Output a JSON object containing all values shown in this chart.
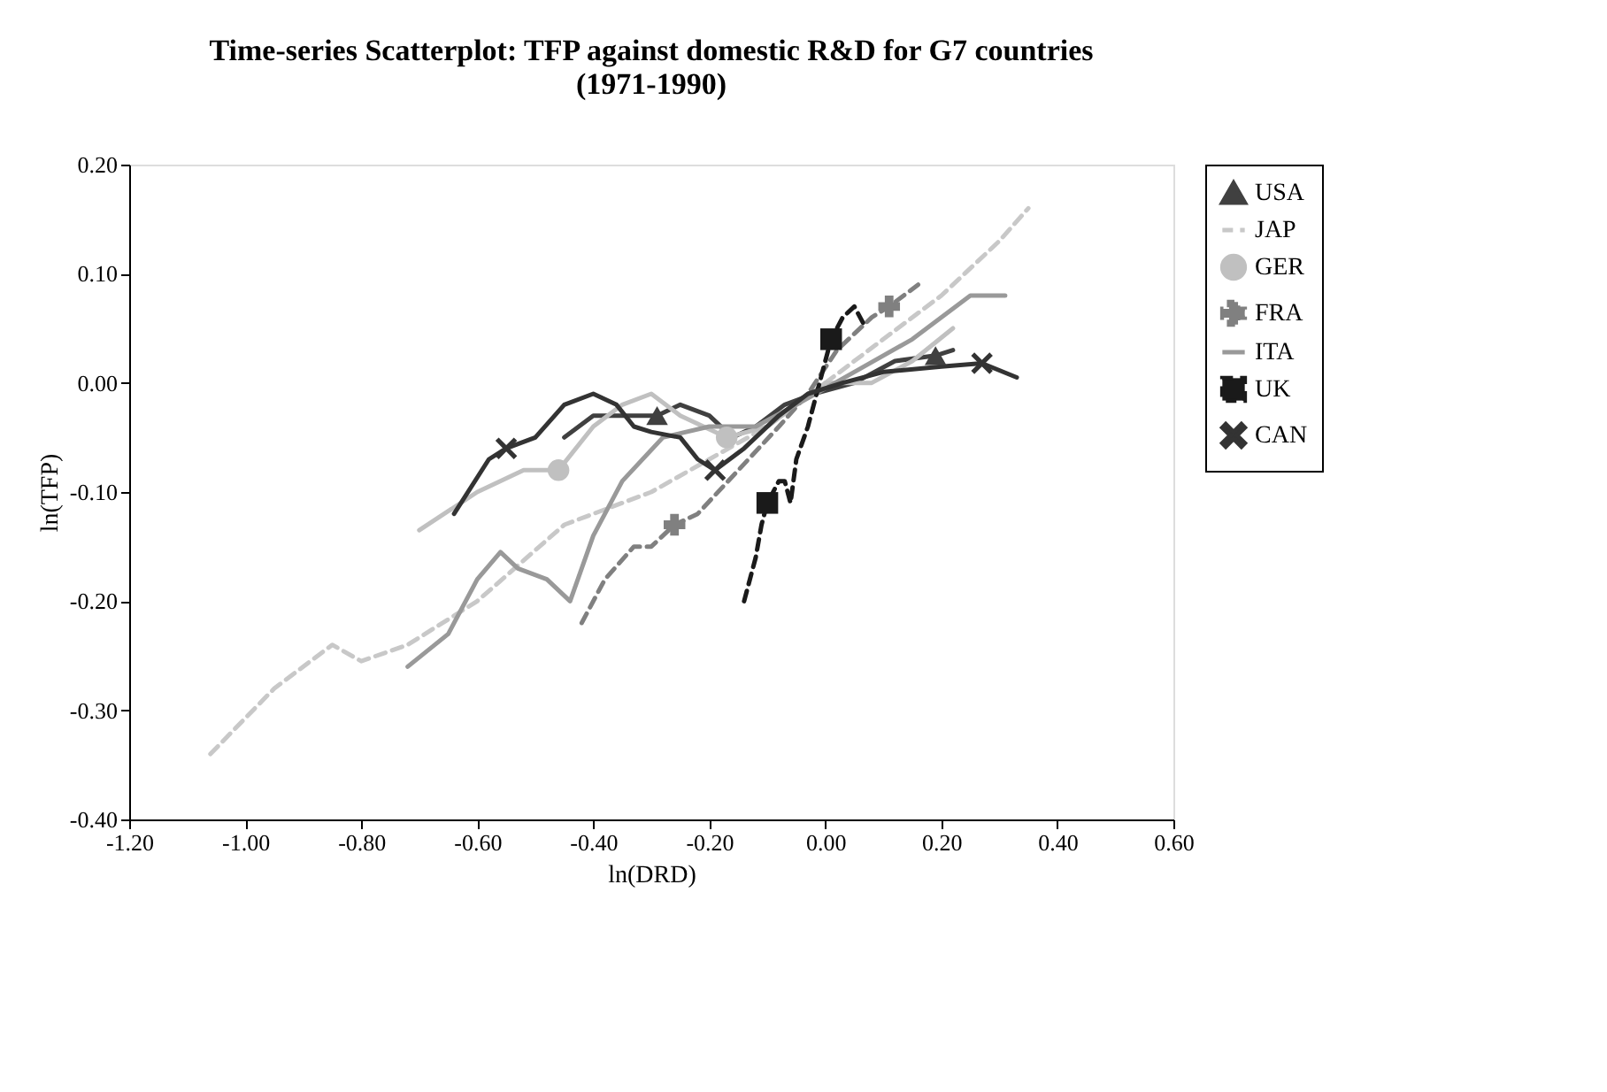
{
  "chart_data": {
    "type": "line",
    "title": "Time-series Scatterplot: TFP against domestic R&D for G7 countries\n(1971-1990)",
    "xlabel": "ln(DRD)",
    "ylabel": "ln(TFP)",
    "xlim": [
      -1.2,
      0.6
    ],
    "ylim": [
      -0.4,
      0.2
    ],
    "xticks": [
      {
        "value": -1.2,
        "label": "-1.20"
      },
      {
        "value": -1.0,
        "label": "-1.00"
      },
      {
        "value": -0.8,
        "label": "-0.80"
      },
      {
        "value": -0.6,
        "label": "-0.60"
      },
      {
        "value": -0.4,
        "label": "-0.40"
      },
      {
        "value": -0.2,
        "label": "-0.20"
      },
      {
        "value": 0,
        "label": "0.00"
      },
      {
        "value": 0.2,
        "label": "0.20"
      },
      {
        "value": 0.4,
        "label": "0.40"
      },
      {
        "value": 0.6,
        "label": "0.60"
      }
    ],
    "yticks": [
      {
        "value": -0.4,
        "label": "-0.40"
      },
      {
        "value": -0.3,
        "label": "-0.30"
      },
      {
        "value": -0.2,
        "label": "-0.20"
      },
      {
        "value": -0.1,
        "label": "-0.10"
      },
      {
        "value": 0,
        "label": "0.00"
      },
      {
        "value": 0.1,
        "label": "0.10"
      },
      {
        "value": 0.2,
        "label": "0.20"
      }
    ],
    "grid": false,
    "legend": "right",
    "series": [
      {
        "name": "USA",
        "color": "#404040",
        "line_style": "solid",
        "x": [
          -0.45,
          -0.4,
          -0.35,
          -0.29,
          -0.25,
          -0.2,
          -0.16,
          -0.12,
          -0.07,
          -0.02,
          0.05,
          0.12,
          0.19,
          0.22
        ],
        "values": [
          -0.05,
          -0.03,
          -0.03,
          -0.03,
          -0.02,
          -0.03,
          -0.05,
          -0.04,
          -0.02,
          -0.01,
          0.0,
          0.02,
          0.025,
          0.03
        ]
      },
      {
        "name": "JAP",
        "color": "#c8c8c8",
        "line_style": "dashed",
        "x": [
          -1.06,
          -0.95,
          -0.85,
          -0.8,
          -0.72,
          -0.6,
          -0.45,
          -0.3,
          -0.2,
          -0.1,
          0.0,
          0.1,
          0.2,
          0.3,
          0.35
        ],
        "values": [
          -0.34,
          -0.28,
          -0.24,
          -0.255,
          -0.24,
          -0.2,
          -0.13,
          -0.1,
          -0.07,
          -0.04,
          0.0,
          0.04,
          0.08,
          0.13,
          0.16
        ]
      },
      {
        "name": "GER",
        "color": "#c0c0c0",
        "line_style": "solid",
        "x": [
          -0.7,
          -0.6,
          -0.52,
          -0.46,
          -0.4,
          -0.35,
          -0.3,
          -0.25,
          -0.17,
          -0.1,
          -0.05,
          0.0,
          0.08,
          0.15,
          0.22
        ],
        "values": [
          -0.135,
          -0.1,
          -0.08,
          -0.08,
          -0.04,
          -0.02,
          -0.01,
          -0.03,
          -0.05,
          -0.04,
          -0.02,
          0.0,
          0.0,
          0.02,
          0.05
        ]
      },
      {
        "name": "FRA",
        "color": "#808080",
        "line_style": "dashed",
        "x": [
          -0.42,
          -0.38,
          -0.33,
          -0.3,
          -0.26,
          -0.22,
          -0.15,
          -0.08,
          -0.03,
          0.02,
          0.08,
          0.11,
          0.16
        ],
        "values": [
          -0.22,
          -0.18,
          -0.15,
          -0.15,
          -0.13,
          -0.12,
          -0.08,
          -0.04,
          -0.01,
          0.03,
          0.06,
          0.07,
          0.09
        ]
      },
      {
        "name": "ITA",
        "color": "#999999",
        "line_style": "solid",
        "x": [
          -0.72,
          -0.65,
          -0.6,
          -0.56,
          -0.53,
          -0.48,
          -0.44,
          -0.4,
          -0.35,
          -0.28,
          -0.2,
          -0.12,
          -0.05,
          0.05,
          0.15,
          0.25,
          0.31
        ],
        "values": [
          -0.26,
          -0.23,
          -0.18,
          -0.155,
          -0.17,
          -0.18,
          -0.2,
          -0.14,
          -0.09,
          -0.05,
          -0.04,
          -0.04,
          -0.02,
          0.01,
          0.04,
          0.08,
          0.08
        ]
      },
      {
        "name": "UK",
        "color": "#1a1a1a",
        "line_style": "dashed",
        "x": [
          -0.14,
          -0.12,
          -0.11,
          -0.1,
          -0.08,
          -0.07,
          -0.06,
          -0.05,
          -0.03,
          -0.01,
          0.0,
          0.01,
          0.03,
          0.05,
          0.07
        ],
        "values": [
          -0.2,
          -0.16,
          -0.13,
          -0.11,
          -0.09,
          -0.09,
          -0.11,
          -0.07,
          -0.04,
          0.0,
          0.02,
          0.04,
          0.06,
          0.07,
          0.05
        ]
      },
      {
        "name": "CAN",
        "color": "#333333",
        "line_style": "solid",
        "x": [
          -0.64,
          -0.58,
          -0.55,
          -0.5,
          -0.45,
          -0.4,
          -0.36,
          -0.33,
          -0.3,
          -0.25,
          -0.22,
          -0.19,
          -0.14,
          -0.08,
          -0.03,
          0.03,
          0.1,
          0.2,
          0.27,
          0.33
        ],
        "values": [
          -0.12,
          -0.07,
          -0.06,
          -0.05,
          -0.02,
          -0.01,
          -0.02,
          -0.04,
          -0.045,
          -0.05,
          -0.07,
          -0.08,
          -0.06,
          -0.03,
          -0.01,
          0.0,
          0.01,
          0.015,
          0.018,
          0.005
        ]
      },
      {
        "type": "scatter",
        "color": "#404040",
        "marker": "triangle",
        "x": [
          -0.29,
          0.19
        ],
        "values": [
          -0.03,
          0.025
        ]
      },
      {
        "type": "scatter",
        "color": "#c0c0c0",
        "marker": "circle",
        "x": [
          -0.46,
          -0.17
        ],
        "values": [
          -0.08,
          -0.05
        ]
      },
      {
        "type": "scatter",
        "color": "#808080",
        "marker": "plus",
        "x": [
          -0.26,
          0.11
        ],
        "values": [
          -0.13,
          0.07
        ]
      },
      {
        "type": "scatter",
        "color": "#1a1a1a",
        "marker": "square",
        "x": [
          -0.1,
          0.01
        ],
        "values": [
          -0.11,
          0.04
        ]
      },
      {
        "type": "scatter",
        "color": "#333333",
        "marker": "cross",
        "x": [
          -0.55,
          -0.19,
          0.27
        ],
        "values": [
          -0.06,
          -0.08,
          0.018
        ]
      }
    ]
  }
}
